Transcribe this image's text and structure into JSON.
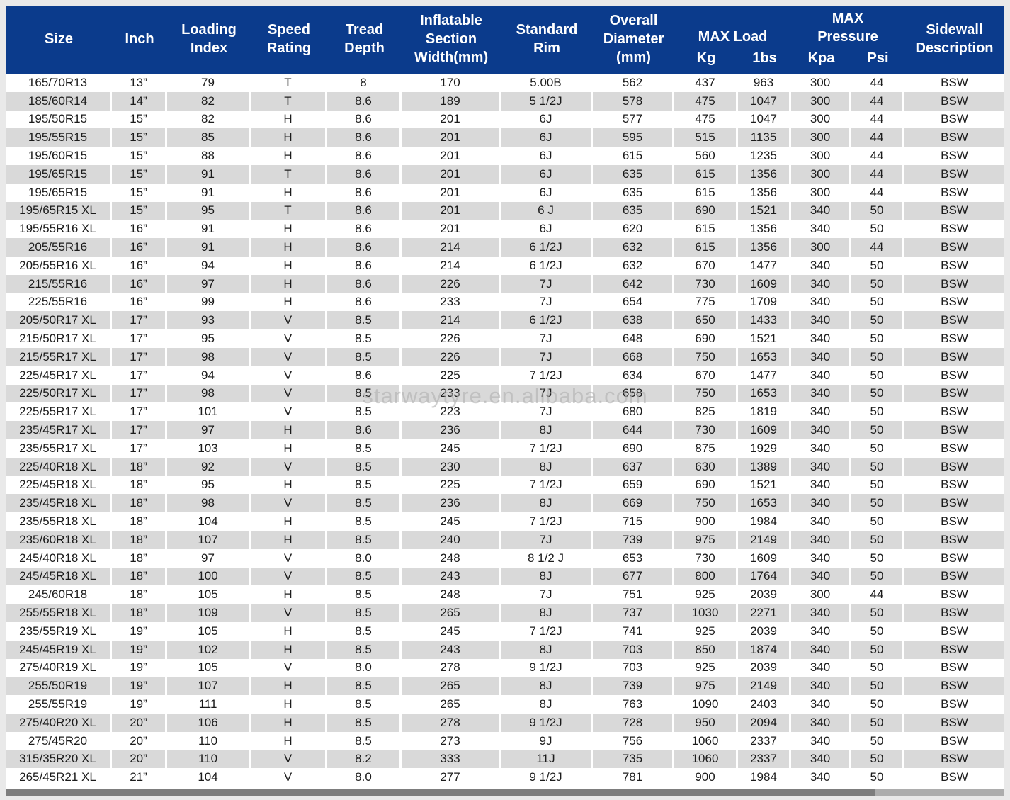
{
  "colors": {
    "header_bg": "#0b3b8c",
    "header_text": "#ffffff",
    "row_alt_bg": "#d9d9d9",
    "row_bg": "#ffffff",
    "cell_text": "#1b1b1b",
    "page_bg": "#e9e9e9",
    "bar_dark": "#7d7d7d",
    "bar_light": "#adadad",
    "watermark_color": "#b0b0b0"
  },
  "watermark": "starwaytyre.en.alibaba.com",
  "table": {
    "headers": {
      "size": "Size",
      "inch": "Inch",
      "loading_index": "Loading\nIndex",
      "speed_rating": "Speed\nRating",
      "tread_depth": "Tread\nDepth",
      "inflatable_section_width": "Inflatable\nSection\nWidth(mm)",
      "standard_rim": "Standard\nRim",
      "overall_diameter": "Overall\nDiameter\n(mm)",
      "max_load": "MAX Load",
      "max_load_kg": "Kg",
      "max_load_lbs": "1bs",
      "max_pressure": "MAX\nPressure",
      "max_pressure_kpa": "Kpa",
      "max_pressure_psi": "Psi",
      "sidewall_description": "Sidewall\nDescription"
    },
    "column_keys": [
      "size",
      "inch",
      "loading_index",
      "speed_rating",
      "tread_depth",
      "inflatable_section_width",
      "standard_rim",
      "overall_diameter",
      "max_load_kg",
      "max_load_lbs",
      "max_pressure_kpa",
      "max_pressure_psi",
      "sidewall_description"
    ],
    "rows": [
      [
        "165/70R13",
        "13”",
        "79",
        "T",
        "8",
        "170",
        "5.00B",
        "562",
        "437",
        "963",
        "300",
        "44",
        "BSW"
      ],
      [
        "185/60R14",
        "14”",
        "82",
        "T",
        "8.6",
        "189",
        "5 1/2J",
        "578",
        "475",
        "1047",
        "300",
        "44",
        "BSW"
      ],
      [
        "195/50R15",
        "15”",
        "82",
        "H",
        "8.6",
        "201",
        "6J",
        "577",
        "475",
        "1047",
        "300",
        "44",
        "BSW"
      ],
      [
        "195/55R15",
        "15”",
        "85",
        "H",
        "8.6",
        "201",
        "6J",
        "595",
        "515",
        "1135",
        "300",
        "44",
        "BSW"
      ],
      [
        "195/60R15",
        "15”",
        "88",
        "H",
        "8.6",
        "201",
        "6J",
        "615",
        "560",
        "1235",
        "300",
        "44",
        "BSW"
      ],
      [
        "195/65R15",
        "15”",
        "91",
        "T",
        "8.6",
        "201",
        "6J",
        "635",
        "615",
        "1356",
        "300",
        "44",
        "BSW"
      ],
      [
        "195/65R15",
        "15”",
        "91",
        "H",
        "8.6",
        "201",
        "6J",
        "635",
        "615",
        "1356",
        "300",
        "44",
        "BSW"
      ],
      [
        "195/65R15 XL",
        "15”",
        "95",
        "T",
        "8.6",
        "201",
        "6 J",
        "635",
        "690",
        "1521",
        "340",
        "50",
        "BSW"
      ],
      [
        "195/55R16 XL",
        "16”",
        "91",
        "H",
        "8.6",
        "201",
        "6J",
        "620",
        "615",
        "1356",
        "340",
        "50",
        "BSW"
      ],
      [
        "205/55R16",
        "16”",
        "91",
        "H",
        "8.6",
        "214",
        "6 1/2J",
        "632",
        "615",
        "1356",
        "300",
        "44",
        "BSW"
      ],
      [
        "205/55R16 XL",
        "16”",
        "94",
        "H",
        "8.6",
        "214",
        "6 1/2J",
        "632",
        "670",
        "1477",
        "340",
        "50",
        "BSW"
      ],
      [
        "215/55R16",
        "16”",
        "97",
        "H",
        "8.6",
        "226",
        "7J",
        "642",
        "730",
        "1609",
        "340",
        "50",
        "BSW"
      ],
      [
        "225/55R16",
        "16”",
        "99",
        "H",
        "8.6",
        "233",
        "7J",
        "654",
        "775",
        "1709",
        "340",
        "50",
        "BSW"
      ],
      [
        "205/50R17 XL",
        "17”",
        "93",
        "V",
        "8.5",
        "214",
        "6 1/2J",
        "638",
        "650",
        "1433",
        "340",
        "50",
        "BSW"
      ],
      [
        "215/50R17 XL",
        "17”",
        "95",
        "V",
        "8.5",
        "226",
        "7J",
        "648",
        "690",
        "1521",
        "340",
        "50",
        "BSW"
      ],
      [
        "215/55R17 XL",
        "17”",
        "98",
        "V",
        "8.5",
        "226",
        "7J",
        "668",
        "750",
        "1653",
        "340",
        "50",
        "BSW"
      ],
      [
        "225/45R17 XL",
        "17”",
        "94",
        "V",
        "8.6",
        "225",
        "7 1/2J",
        "634",
        "670",
        "1477",
        "340",
        "50",
        "BSW"
      ],
      [
        "225/50R17 XL",
        "17”",
        "98",
        "V",
        "8.5",
        "233",
        "7J",
        "658",
        "750",
        "1653",
        "340",
        "50",
        "BSW"
      ],
      [
        "225/55R17 XL",
        "17”",
        "101",
        "V",
        "8.5",
        "223",
        "7J",
        "680",
        "825",
        "1819",
        "340",
        "50",
        "BSW"
      ],
      [
        "235/45R17 XL",
        "17”",
        "97",
        "H",
        "8.6",
        "236",
        "8J",
        "644",
        "730",
        "1609",
        "340",
        "50",
        "BSW"
      ],
      [
        "235/55R17 XL",
        "17”",
        "103",
        "H",
        "8.5",
        "245",
        "7 1/2J",
        "690",
        "875",
        "1929",
        "340",
        "50",
        "BSW"
      ],
      [
        "225/40R18 XL",
        "18”",
        "92",
        "V",
        "8.5",
        "230",
        "8J",
        "637",
        "630",
        "1389",
        "340",
        "50",
        "BSW"
      ],
      [
        "225/45R18 XL",
        "18”",
        "95",
        "H",
        "8.5",
        "225",
        "7 1/2J",
        "659",
        "690",
        "1521",
        "340",
        "50",
        "BSW"
      ],
      [
        "235/45R18 XL",
        "18”",
        "98",
        "V",
        "8.5",
        "236",
        "8J",
        "669",
        "750",
        "1653",
        "340",
        "50",
        "BSW"
      ],
      [
        "235/55R18 XL",
        "18”",
        "104",
        "H",
        "8.5",
        "245",
        "7 1/2J",
        "715",
        "900",
        "1984",
        "340",
        "50",
        "BSW"
      ],
      [
        "235/60R18 XL",
        "18”",
        "107",
        "H",
        "8.5",
        "240",
        "7J",
        "739",
        "975",
        "2149",
        "340",
        "50",
        "BSW"
      ],
      [
        "245/40R18 XL",
        "18”",
        "97",
        "V",
        "8.0",
        "248",
        "8 1/2 J",
        "653",
        "730",
        "1609",
        "340",
        "50",
        "BSW"
      ],
      [
        "245/45R18 XL",
        "18”",
        "100",
        "V",
        "8.5",
        "243",
        "8J",
        "677",
        "800",
        "1764",
        "340",
        "50",
        "BSW"
      ],
      [
        "245/60R18",
        "18”",
        "105",
        "H",
        "8.5",
        "248",
        "7J",
        "751",
        "925",
        "2039",
        "300",
        "44",
        "BSW"
      ],
      [
        "255/55R18 XL",
        "18”",
        "109",
        "V",
        "8.5",
        "265",
        "8J",
        "737",
        "1030",
        "2271",
        "340",
        "50",
        "BSW"
      ],
      [
        "235/55R19 XL",
        "19”",
        "105",
        "H",
        "8.5",
        "245",
        "7 1/2J",
        "741",
        "925",
        "2039",
        "340",
        "50",
        "BSW"
      ],
      [
        "245/45R19 XL",
        "19”",
        "102",
        "H",
        "8.5",
        "243",
        "8J",
        "703",
        "850",
        "1874",
        "340",
        "50",
        "BSW"
      ],
      [
        "275/40R19 XL",
        "19”",
        "105",
        "V",
        "8.0",
        "278",
        "9 1/2J",
        "703",
        "925",
        "2039",
        "340",
        "50",
        "BSW"
      ],
      [
        "255/50R19",
        "19”",
        "107",
        "H",
        "8.5",
        "265",
        "8J",
        "739",
        "975",
        "2149",
        "340",
        "50",
        "BSW"
      ],
      [
        "255/55R19",
        "19”",
        "111",
        "H",
        "8.5",
        "265",
        "8J",
        "763",
        "1090",
        "2403",
        "340",
        "50",
        "BSW"
      ],
      [
        "275/40R20 XL",
        "20”",
        "106",
        "H",
        "8.5",
        "278",
        "9 1/2J",
        "728",
        "950",
        "2094",
        "340",
        "50",
        "BSW"
      ],
      [
        "275/45R20",
        "20”",
        "110",
        "H",
        "8.5",
        "273",
        "9J",
        "756",
        "1060",
        "2337",
        "340",
        "50",
        "BSW"
      ],
      [
        "315/35R20 XL",
        "20”",
        "110",
        "V",
        "8.2",
        "333",
        "11J",
        "735",
        "1060",
        "2337",
        "340",
        "50",
        "BSW"
      ],
      [
        "265/45R21 XL",
        "21”",
        "104",
        "V",
        "8.0",
        "277",
        "9 1/2J",
        "781",
        "900",
        "1984",
        "340",
        "50",
        "BSW"
      ]
    ]
  }
}
